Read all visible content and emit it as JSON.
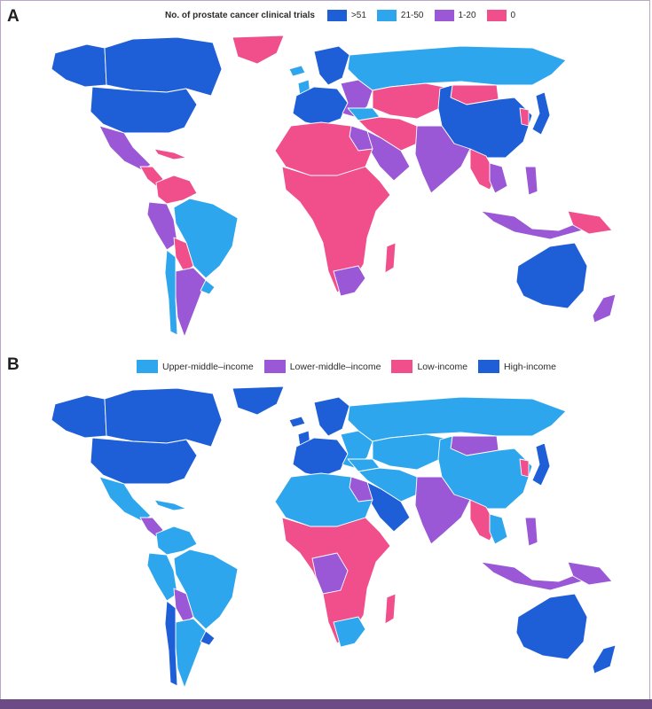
{
  "panel_a": {
    "label": "A",
    "legend_title": "No. of prostate cancer clinical trials",
    "legend": [
      {
        "label": ">51",
        "color": "#1e5fd8"
      },
      {
        "label": "21-50",
        "color": "#2ea6ee"
      },
      {
        "label": "1-20",
        "color": "#9a57d6"
      },
      {
        "label": "0",
        "color": "#f04f8c"
      }
    ]
  },
  "panel_b": {
    "label": "B",
    "legend": [
      {
        "label": "Upper-middle–income",
        "color": "#2ea6ee"
      },
      {
        "label": "Lower-middle–income",
        "color": "#9a57d6"
      },
      {
        "label": "Low-income",
        "color": "#f04f8c"
      },
      {
        "label": "High-income",
        "color": "#1e5fd8"
      }
    ]
  },
  "colors": {
    "high": "#1e5fd8",
    "mid": "#2ea6ee",
    "low": "#9a57d6",
    "zero": "#f04f8c",
    "footer": "#6b4a86"
  }
}
